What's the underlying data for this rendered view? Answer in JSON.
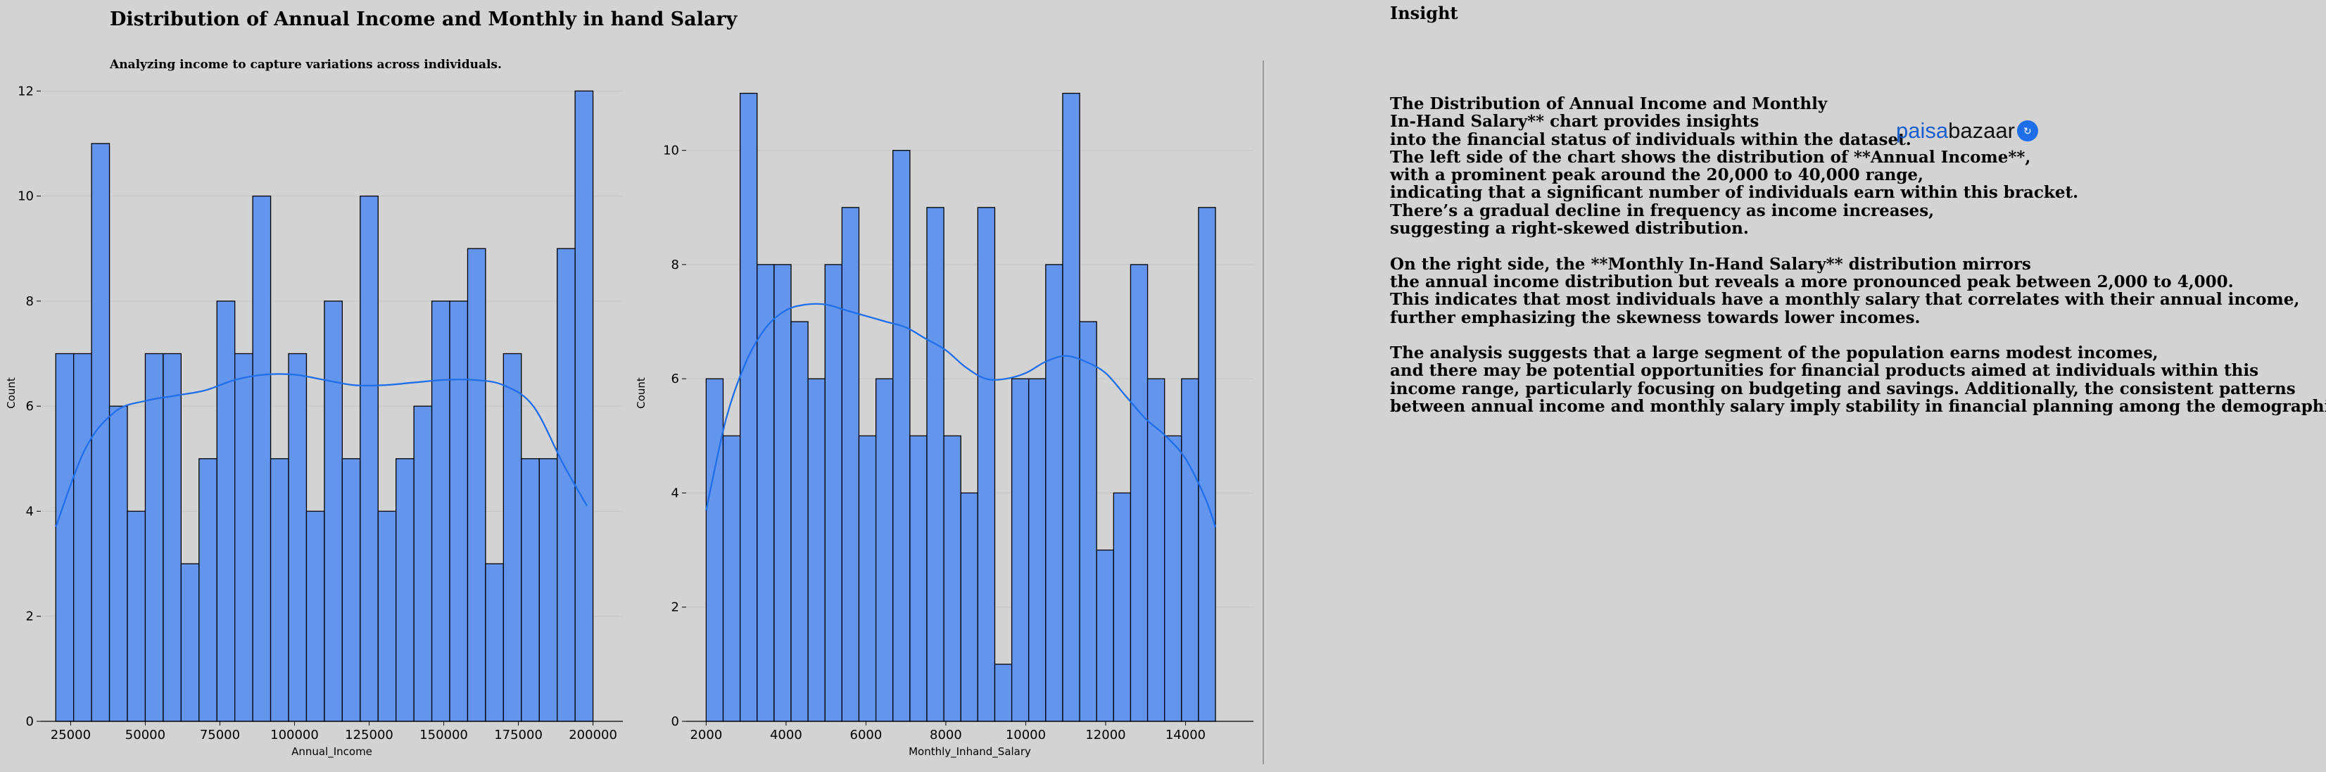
{
  "title": "Distribution of Annual Income and Monthly in hand Salary",
  "subtitle": "Analyzing income to capture variations across individuals.",
  "colors": {
    "background": "#d3d3d3",
    "bar_fill": "#6495ed",
    "bar_edge": "#000000",
    "kde_line": "#1f6feb",
    "grid": "#c4c4c4"
  },
  "chart_data": [
    {
      "type": "bar",
      "subtype": "histogram-with-kde",
      "xlabel": "Annual_Income",
      "ylabel": "Count",
      "xlim": [
        15000,
        210000
      ],
      "ylim": [
        0,
        12.5
      ],
      "bin_start": 20000,
      "bin_width": 6000,
      "values": [
        7,
        7,
        11,
        6,
        4,
        7,
        7,
        3,
        5,
        8,
        7,
        10,
        5,
        7,
        4,
        8,
        5,
        10,
        4,
        5,
        6,
        8,
        8,
        9,
        3,
        7,
        5,
        5,
        9,
        12
      ],
      "kde": {
        "x": [
          20000,
          30000,
          40000,
          50000,
          60000,
          70000,
          80000,
          90000,
          100000,
          110000,
          120000,
          130000,
          140000,
          150000,
          160000,
          170000,
          180000,
          190000,
          198000
        ],
        "y": [
          3.7,
          5.2,
          5.9,
          6.1,
          6.2,
          6.3,
          6.5,
          6.6,
          6.6,
          6.5,
          6.4,
          6.4,
          6.45,
          6.5,
          6.5,
          6.4,
          6.0,
          4.9,
          4.1
        ]
      },
      "xticks": [
        25000,
        50000,
        75000,
        100000,
        125000,
        150000,
        175000,
        200000
      ],
      "xtick_labels": [
        "25000",
        "50000",
        "75000",
        "100000",
        "125000",
        "150000",
        "175000",
        "200000"
      ],
      "yticks": [
        0,
        2,
        4,
        6,
        8,
        10,
        12
      ],
      "ytick_labels": [
        "0",
        "2",
        "4",
        "6",
        "8",
        "10",
        "12"
      ],
      "grid": "horizontal"
    },
    {
      "type": "bar",
      "subtype": "histogram-with-kde",
      "xlabel": "Monthly_Inhand_Salary",
      "ylabel": "Count",
      "xlim": [
        1500,
        15700
      ],
      "ylim": [
        0,
        11.5
      ],
      "bin_start": 2000,
      "bin_width": 425,
      "values": [
        6,
        5,
        11,
        8,
        8,
        7,
        6,
        8,
        9,
        5,
        6,
        10,
        5,
        9,
        5,
        4,
        9,
        1,
        6,
        6,
        8,
        11,
        7,
        3,
        4,
        8,
        6,
        5,
        6,
        9
      ],
      "kde": {
        "x": [
          2000,
          2500,
          3000,
          3500,
          4000,
          4500,
          5000,
          5500,
          6000,
          6500,
          7000,
          7500,
          8000,
          8500,
          9000,
          9500,
          10000,
          10500,
          11000,
          11500,
          12000,
          12500,
          13000,
          13500,
          14000,
          14500,
          14750
        ],
        "y": [
          3.7,
          5.3,
          6.3,
          6.9,
          7.2,
          7.3,
          7.3,
          7.2,
          7.1,
          7.0,
          6.9,
          6.7,
          6.5,
          6.2,
          6.0,
          6.0,
          6.1,
          6.3,
          6.4,
          6.3,
          6.1,
          5.7,
          5.3,
          5.0,
          4.6,
          3.9,
          3.4
        ]
      },
      "xticks": [
        2000,
        4000,
        6000,
        8000,
        10000,
        12000,
        14000
      ],
      "xtick_labels": [
        "2000",
        "4000",
        "6000",
        "8000",
        "10000",
        "12000",
        "14000"
      ],
      "yticks": [
        0,
        2,
        4,
        6,
        8,
        10
      ],
      "ytick_labels": [
        "0",
        "2",
        "4",
        "6",
        "8",
        "10"
      ],
      "grid": "horizontal"
    }
  ],
  "insight": {
    "title": "Insight",
    "lines": [
      "The Distribution of Annual Income and Monthly",
      "In-Hand Salary** chart provides insights",
      "into the financial status of individuals within the dataset.",
      "The left side of the chart shows the distribution of **Annual Income**,",
      "with a prominent peak around the 20,000 to 40,000 range,",
      "indicating that a significant number of individuals earn within this bracket.",
      "There’s a gradual decline in frequency as income increases,",
      "suggesting a right-skewed distribution.",
      "",
      "On the right side, the **Monthly In-Hand Salary** distribution mirrors",
      "the annual income distribution but reveals a more pronounced peak between 2,000 to 4,000.",
      "This indicates that most individuals have a monthly salary that correlates with their annual income,",
      "further emphasizing the skewness towards lower incomes.",
      "",
      "The analysis suggests that a large segment of the population earns modest incomes,",
      "and there may be potential opportunities for financial products aimed at individuals within this",
      "income range, particularly focusing on budgeting and savings. Additionally, the consistent patterns",
      "between annual income and monthly salary imply stability in financial planning among the demographic."
    ]
  },
  "logo": {
    "part1": "paisa",
    "part2": "bazaar"
  }
}
